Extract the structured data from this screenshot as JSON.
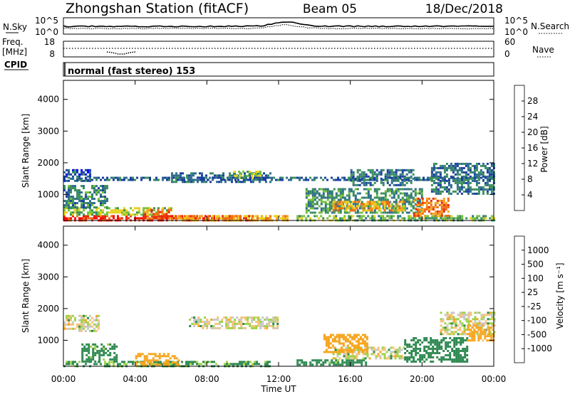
{
  "header": {
    "station": "Zhongshan Station (fitACF)",
    "beam": "Beam 05",
    "date": "18/Dec/2018"
  },
  "strips": {
    "nsky_label": "N.Sky",
    "nsky_ticks": [
      "10^5",
      "10^0"
    ],
    "nsearch_label": "N.Search",
    "nsearch_ticks": [
      "10^5",
      "10^0"
    ],
    "freq_label_1": "Freq.",
    "freq_label_2": "[MHz]",
    "freq_ticks": [
      "18",
      "8"
    ],
    "nave_label": "Nave",
    "nave_ticks": [
      "60",
      "0"
    ],
    "cpid_label": "CPID",
    "cpid_text": "normal (fast stereo) 153"
  },
  "colors": {
    "power_scale": [
      "#0000ff",
      "#1a3fa0",
      "#2f6e8c",
      "#3a8f5a",
      "#77c13a",
      "#e8d21e",
      "#f5a51e",
      "#f06a12",
      "#e62e0e",
      "#ff0000"
    ],
    "velocity_scale": [
      "#ff0000",
      "#f06a12",
      "#f7a51e",
      "#f5c47a",
      "#c8c8c8",
      "#9fd24a",
      "#2f8a52",
      "#2b4f96",
      "#0000ff"
    ]
  },
  "chart_data": [
    {
      "type": "heatmap",
      "panel": "power",
      "ylabel": "Slant Range [km]",
      "yticks": [
        "1000",
        "2000",
        "3000",
        "4000"
      ],
      "ylim": [
        180,
        4600
      ],
      "xlim": [
        0,
        24
      ],
      "colorbar_label": "Power [dB]",
      "colorbar_ticks": [
        "4",
        "8",
        "12",
        "16",
        "20",
        "24",
        "28"
      ],
      "colorbar_range": [
        0,
        30
      ],
      "regions": [
        {
          "t0": 0.0,
          "t1": 10.5,
          "r0": 200,
          "r1": 350,
          "value": 26
        },
        {
          "t0": 0.0,
          "t1": 6.0,
          "r0": 350,
          "r1": 600,
          "value": 14
        },
        {
          "t0": 4.5,
          "t1": 6.0,
          "r0": 250,
          "r1": 550,
          "value": 23
        },
        {
          "t0": 0.0,
          "t1": 2.5,
          "r0": 600,
          "r1": 1300,
          "value": 9
        },
        {
          "t0": 0.0,
          "t1": 1.5,
          "r0": 1400,
          "r1": 1800,
          "value": 6
        },
        {
          "t0": 6.0,
          "t1": 11.5,
          "r0": 1400,
          "r1": 1700,
          "value": 7
        },
        {
          "t0": 9.5,
          "t1": 11.0,
          "r0": 1500,
          "r1": 1750,
          "value": 14
        },
        {
          "t0": 6.0,
          "t1": 12.5,
          "r0": 200,
          "r1": 350,
          "value": 20
        },
        {
          "t0": 13.0,
          "t1": 24.0,
          "r0": 200,
          "r1": 350,
          "value": 12
        },
        {
          "t0": 13.5,
          "t1": 20.0,
          "r0": 400,
          "r1": 1200,
          "value": 10
        },
        {
          "t0": 15.0,
          "t1": 19.0,
          "r0": 500,
          "r1": 800,
          "value": 20
        },
        {
          "t0": 16.0,
          "t1": 19.5,
          "r0": 1300,
          "r1": 1800,
          "value": 8
        },
        {
          "t0": 19.5,
          "t1": 21.5,
          "r0": 350,
          "r1": 900,
          "value": 22
        },
        {
          "t0": 20.5,
          "t1": 24.0,
          "r0": 1000,
          "r1": 2000,
          "value": 8
        },
        {
          "t0": 0.0,
          "t1": 24.0,
          "r0": 1450,
          "r1": 1560,
          "value": 7
        }
      ]
    },
    {
      "type": "heatmap",
      "panel": "velocity",
      "ylabel": "Slant Range [km]",
      "yticks": [
        "1000",
        "2000",
        "3000",
        "4000"
      ],
      "ylim": [
        180,
        4600
      ],
      "xlim": [
        0,
        24
      ],
      "xticks": [
        "00:00",
        "04:00",
        "08:00",
        "12:00",
        "16:00",
        "20:00",
        "00:00"
      ],
      "xlabel": "Time UT",
      "colorbar_label": "Velocity [m s⁻¹]",
      "colorbar_ticks": [
        "-1000",
        "-500",
        "-100",
        "-25",
        "25",
        "100",
        "500",
        "1000"
      ],
      "regions": [
        {
          "t0": 0.0,
          "t1": 11.5,
          "r0": 200,
          "r1": 350,
          "value": 150
        },
        {
          "t0": 1.0,
          "t1": 3.0,
          "r0": 350,
          "r1": 900,
          "value": 200
        },
        {
          "t0": 4.0,
          "t1": 6.5,
          "r0": 250,
          "r1": 600,
          "value": -300
        },
        {
          "t0": 0.0,
          "t1": 2.0,
          "r0": 1300,
          "r1": 1800,
          "value": 0
        },
        {
          "t0": 7.0,
          "t1": 12.0,
          "r0": 1400,
          "r1": 1750,
          "value": 0
        },
        {
          "t0": 13.0,
          "t1": 17.0,
          "r0": 200,
          "r1": 400,
          "value": 200
        },
        {
          "t0": 15.0,
          "t1": 19.0,
          "r0": 400,
          "r1": 800,
          "value": 0
        },
        {
          "t0": 14.5,
          "t1": 17.0,
          "r0": 600,
          "r1": 1200,
          "value": -300
        },
        {
          "t0": 19.0,
          "t1": 22.5,
          "r0": 300,
          "r1": 1100,
          "value": 300
        },
        {
          "t0": 21.0,
          "t1": 24.0,
          "r0": 1200,
          "r1": 1900,
          "value": 0
        },
        {
          "t0": 22.5,
          "t1": 24.0,
          "r0": 1000,
          "r1": 1500,
          "value": -200
        }
      ]
    }
  ]
}
